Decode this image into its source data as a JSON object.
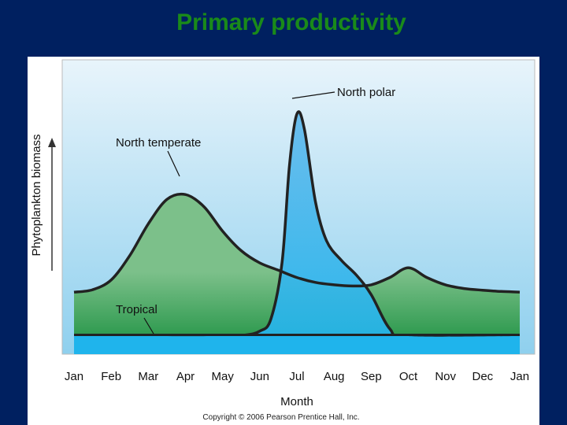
{
  "slide": {
    "title": "Primary productivity",
    "copyright": "Copyright © 2006 Pearson Prentice Hall, Inc."
  },
  "colors": {
    "background": "#002060",
    "title": "#1a8a1a",
    "sky_top": "#e8f4fb",
    "sky_bottom": "#8fd0ee",
    "temperate_fill": "#7cc08a",
    "temperate_fill_dark": "#2e9a4f",
    "polar_fill": "#62b9ec",
    "polar_fill_dark": "#1fb4ec",
    "tropical_fill": "#ff6040",
    "line": "#222222"
  },
  "chart_data": {
    "type": "area",
    "title": "",
    "xlabel": "Month",
    "ylabel": "Phytoplankton biomass",
    "categories": [
      "Jan",
      "Feb",
      "Mar",
      "Apr",
      "May",
      "Jun",
      "Jul",
      "Aug",
      "Sep",
      "Oct",
      "Nov",
      "Dec",
      "Jan"
    ],
    "ylim": [
      0,
      100
    ],
    "y_units": "relative (no scale shown)",
    "series": [
      {
        "name": "North temperate",
        "x": [
          0,
          0.5,
          1,
          1.5,
          2,
          2.5,
          3,
          3.5,
          4,
          4.5,
          5,
          5.5,
          6,
          6.5,
          7,
          7.5,
          8,
          8.5,
          9,
          9.5,
          10,
          10.5,
          11,
          11.5,
          12
        ],
        "values": [
          18,
          19,
          23,
          33,
          46,
          56,
          58,
          53,
          43,
          35,
          30,
          27,
          24,
          22,
          21,
          20.5,
          21,
          24,
          28,
          24,
          21,
          19.5,
          18.8,
          18.3,
          18
        ]
      },
      {
        "name": "North polar",
        "x": [
          0,
          4,
          4.6,
          5,
          5.3,
          5.6,
          5.8,
          6,
          6.2,
          6.5,
          6.8,
          7.2,
          7.6,
          8,
          8.5,
          9,
          12
        ],
        "values": [
          0,
          0,
          0.4,
          2,
          7,
          30,
          70,
          91,
          85,
          55,
          39,
          31,
          25,
          17,
          3,
          0,
          0
        ]
      },
      {
        "name": "Tropical",
        "x": [
          0,
          12
        ],
        "values": [
          0.5,
          0.5
        ]
      }
    ],
    "annotations": [
      {
        "text": "North polar",
        "target": "peak, early July"
      },
      {
        "text": "North temperate",
        "target": "spring peak, April"
      },
      {
        "text": "Tropical",
        "target": "low constant level"
      }
    ]
  }
}
